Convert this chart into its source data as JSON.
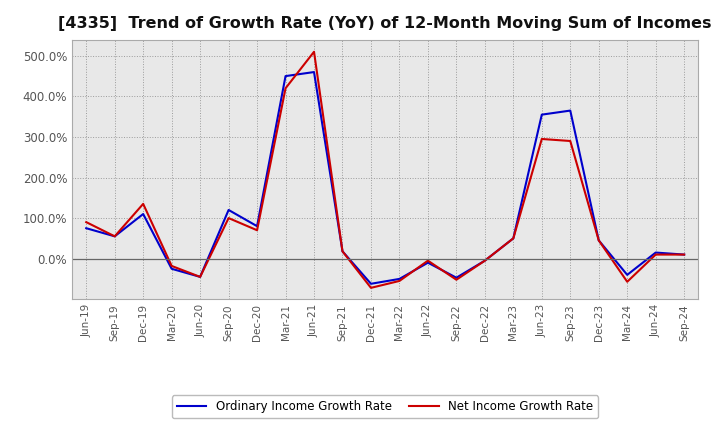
{
  "title": "[4335]  Trend of Growth Rate (YoY) of 12-Month Moving Sum of Incomes",
  "title_fontsize": 11.5,
  "background_color": "#ffffff",
  "plot_bg_color": "#e8e8e8",
  "grid_color": "#888888",
  "x_labels": [
    "Jun-19",
    "Sep-19",
    "Dec-19",
    "Mar-20",
    "Jun-20",
    "Sep-20",
    "Dec-20",
    "Mar-21",
    "Jun-21",
    "Sep-21",
    "Dec-21",
    "Mar-22",
    "Jun-22",
    "Sep-22",
    "Dec-22",
    "Mar-23",
    "Jun-23",
    "Sep-23",
    "Dec-23",
    "Mar-24",
    "Jun-24",
    "Sep-24"
  ],
  "ordinary_income": [
    75,
    55,
    110,
    -25,
    -45,
    120,
    80,
    450,
    460,
    18,
    -62,
    -50,
    -10,
    -47,
    -5,
    50,
    355,
    365,
    45,
    -40,
    15,
    10
  ],
  "net_income": [
    90,
    55,
    135,
    -18,
    -45,
    100,
    70,
    420,
    510,
    18,
    -72,
    -55,
    -5,
    -52,
    -5,
    50,
    295,
    290,
    45,
    -57,
    10,
    10
  ],
  "ordinary_color": "#0000cc",
  "net_color": "#cc0000",
  "line_width": 1.5,
  "ylim": [
    -100,
    540
  ],
  "yticks": [
    0,
    100,
    200,
    300,
    400,
    500
  ],
  "legend_ordinary": "Ordinary Income Growth Rate",
  "legend_net": "Net Income Growth Rate",
  "figwidth": 7.2,
  "figheight": 4.4,
  "dpi": 100
}
